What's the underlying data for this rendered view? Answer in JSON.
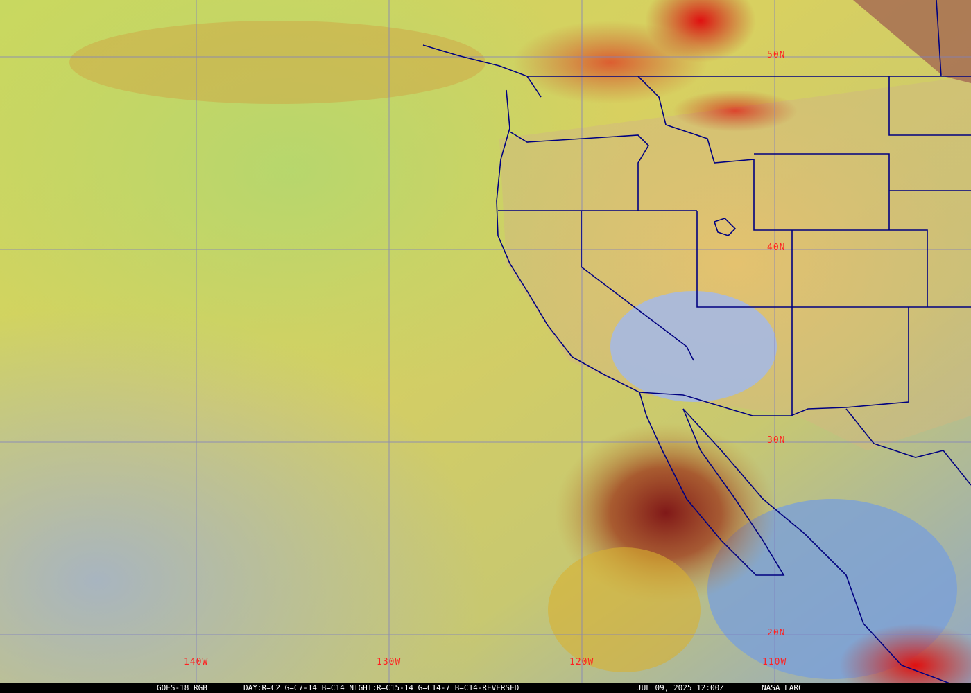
{
  "map": {
    "satellite": "GOES-18",
    "product": "RGB",
    "colors": {
      "gridline": "#8080c0",
      "borders": "#000080",
      "labels": "#ff2020"
    },
    "lat_labels": [
      "50N",
      "40N",
      "30N",
      "20N"
    ],
    "lon_labels": [
      "140W",
      "130W",
      "120W",
      "110W"
    ]
  },
  "caption": {
    "product": "GOES-18 RGB",
    "recipe": "DAY:R=C2 G=C7-14 B=C14 NIGHT:R=C15-14 G=C14-7 B=C14-REVERSED",
    "datetime": "JUL 09, 2025 12:00Z",
    "source": "NASA LARC"
  }
}
